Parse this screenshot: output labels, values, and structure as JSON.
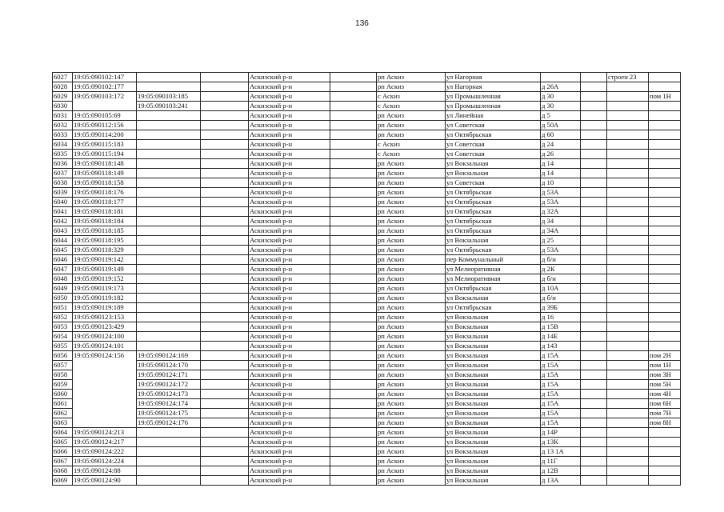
{
  "page_number": "136",
  "table": {
    "rows": [
      [
        "6027",
        "19:05:090102:147",
        "",
        "Аскизский р-н",
        "рп Аскиз",
        "ул Нагорная",
        "",
        "строен 23",
        ""
      ],
      [
        "6028",
        "19:05:090102:177",
        "",
        "Аскизский р-н",
        "рп Аскиз",
        "ул Нагорная",
        "д 26А",
        "",
        ""
      ],
      [
        "6029",
        "19:05:090103:172",
        "19:05:090103:185",
        "Аскизский р-н",
        "с Аскиз",
        "ул Промышленная",
        "д 30",
        "",
        "пом 1Н"
      ],
      [
        "6030",
        null,
        "19:05:090103:241",
        "Аскизский р-н",
        "с Аскиз",
        "ул Промышленная",
        "д 30",
        "",
        ""
      ],
      [
        "6031",
        "19:05:090105:69",
        "",
        "Аскизский р-н",
        "рп Аскиз",
        "ул Линейная",
        "д 5",
        "",
        ""
      ],
      [
        "6032",
        "19:05:090112:156",
        "",
        "Аскизский р-н",
        "рп Аскиз",
        "ул Советская",
        "д 50А",
        "",
        ""
      ],
      [
        "6033",
        "19:05:090114:200",
        "",
        "Аскизский р-н",
        "рп Аскиз",
        "ул Октябрьская",
        "д 60",
        "",
        ""
      ],
      [
        "6034",
        "19:05:090115:183",
        "",
        "Аскизский р-н",
        "с Аскиз",
        "ул Советская",
        "д 24",
        "",
        ""
      ],
      [
        "6035",
        "19:05:090115:194",
        "",
        "Аскизский р-н",
        "с Аскиз",
        "ул Советская",
        "д 26",
        "",
        ""
      ],
      [
        "6036",
        "19:05:090118:148",
        "",
        "Аскизский р-н",
        "рп Аскиз",
        "ул Вокзальная",
        "д 14",
        "",
        ""
      ],
      [
        "6037",
        "19:05:090118:149",
        "",
        "Аскизский р-н",
        "рп Аскиз",
        "ул Вокзальная",
        "д 14",
        "",
        ""
      ],
      [
        "6038",
        "19:05:090118:158",
        "",
        "Аскизский р-н",
        "рп Аскиз",
        "ул Советская",
        "д 10",
        "",
        ""
      ],
      [
        "6039",
        "19:05:090118:176",
        "",
        "Аскизский р-н",
        "рп Аскиз",
        "ул Октябрьская",
        "д 53А",
        "",
        ""
      ],
      [
        "6040",
        "19:05:090118:177",
        "",
        "Аскизский р-н",
        "рп Аскиз",
        "ул Октябрьская",
        "д 53А",
        "",
        ""
      ],
      [
        "6041",
        "19:05:090118:181",
        "",
        "Аскизский р-н",
        "рп Аскиз",
        "ул Октябрьская",
        "д 32А",
        "",
        ""
      ],
      [
        "6042",
        "19:05:090118:184",
        "",
        "Аскизский р-н",
        "рп Аскиз",
        "ул Октябрьская",
        "д 34",
        "",
        ""
      ],
      [
        "6043",
        "19:05:090118:185",
        "",
        "Аскизский р-н",
        "рп Аскиз",
        "ул Октябрьская",
        "д 34А",
        "",
        ""
      ],
      [
        "6044",
        "19:05:090118:195",
        "",
        "Аскизский р-н",
        "рп Аскиз",
        "ул Вокзальная",
        "д 25",
        "",
        ""
      ],
      [
        "6045",
        "19:05:090118:329",
        "",
        "Аскизский р-н",
        "рп Аскиз",
        "ул Октябрьская",
        "д 53А",
        "",
        ""
      ],
      [
        "6046",
        "19:05:090119:142",
        "",
        "Аскизский р-н",
        "рп Аскиз",
        "пер Коммунальный",
        "д б/н",
        "",
        ""
      ],
      [
        "6047",
        "19:05:090119:149",
        "",
        "Аскизский р-н",
        "рп Аскиз",
        "ул Мелиоративная",
        "д 2К",
        "",
        ""
      ],
      [
        "6048",
        "19:05:090119:152",
        "",
        "Аскизский р-н",
        "рп Аскиз",
        "ул Мелиоративная",
        "д б/н",
        "",
        ""
      ],
      [
        "6049",
        "19:05:090119:173",
        "",
        "Аскизский р-н",
        "рп Аскиз",
        "ул Октябрьская",
        "д 10А",
        "",
        ""
      ],
      [
        "6050",
        "19:05:090119:182",
        "",
        "Аскизский р-н",
        "рп Аскиз",
        "ул Вокзальная",
        "д б/н",
        "",
        ""
      ],
      [
        "6051",
        "19:05:090119:189",
        "",
        "Аскизский р-н",
        "рп Аскиз",
        "ул Октябрьская",
        "д 39Б",
        "",
        ""
      ],
      [
        "6052",
        "19:05:090123:153",
        "",
        "Аскизский р-н",
        "рп Аскиз",
        "ул Вокзальная",
        "д 16",
        "",
        ""
      ],
      [
        "6053",
        "19:05:090123:429",
        "",
        "Аскизский р-н",
        "рп Аскиз",
        "ул Вокзальная",
        "д 15В",
        "",
        ""
      ],
      [
        "6054",
        "19:05:090124:100",
        "",
        "Аскизский р-н",
        "рп Аскиз",
        "ул Вокзальная",
        "д 14Е",
        "",
        ""
      ],
      [
        "6055",
        "19:05:090124:101",
        "",
        "Аскизский р-н",
        "рп Аскиз",
        "ул Вокзальная",
        "д 143",
        "",
        ""
      ],
      [
        "6056",
        "19:05:090124:156",
        "19:05:090124:169",
        "Аскизский р-н",
        "рп Аскиз",
        "ул Вокзальная",
        "д 15А",
        "",
        "пом 2Н"
      ],
      [
        "6057",
        null,
        "19:05:090124:170",
        "Аскизский р-н",
        "рп Аскиз",
        "ул Вокзальная",
        "д 15А",
        "",
        "пом 1Н"
      ],
      [
        "6058",
        null,
        "19:05:090124:171",
        "Аскизский р-н",
        "рп Аскиз",
        "ул Вокзальная",
        "д 15А",
        "",
        "пом 3Н"
      ],
      [
        "6059",
        null,
        "19:05:090124:172",
        "Аскизский р-н",
        "рп Аскиз",
        "ул Вокзальная",
        "д 15А",
        "",
        "пом 5Н"
      ],
      [
        "6060",
        null,
        "19:05:090124:173",
        "Аскизский р-н",
        "рп Аскиз",
        "ул Вокзальная",
        "д 15А",
        "",
        "пом 4Н"
      ],
      [
        "6061",
        null,
        "19:05:090124:174",
        "Аскизский р-н",
        "рп Аскиз",
        "ул Вокзальная",
        "д 15А",
        "",
        "пом 6Н"
      ],
      [
        "6062",
        null,
        "19:05:090124:175",
        "Аскизский р-н",
        "рп Аскиз",
        "ул Вокзальная",
        "д 15А",
        "",
        "пом 7Н"
      ],
      [
        "6063",
        null,
        "19:05:090124:176",
        "Аскизский р-н",
        "рп Аскиз",
        "ул Вокзальная",
        "д 15А",
        "",
        "пом 8Н"
      ],
      [
        "6064",
        "19:05:090124:213",
        "",
        "Аскизский р-н",
        "рп Аскиз",
        "ул Вокзальная",
        "д 14Р",
        "",
        ""
      ],
      [
        "6065",
        "19:05:090124:217",
        "",
        "Аскизский р-н",
        "рп Аскиз",
        "ул Вокзальная",
        "д 13К",
        "",
        ""
      ],
      [
        "6066",
        "19:05:090124:222",
        "",
        "Аскизский р-н",
        "рп Аскиз",
        "ул Вокзальная",
        "д 13 1А",
        "",
        ""
      ],
      [
        "6067",
        "19:05:090124:224",
        "",
        "Аскизский р-н",
        "рп Аскиз",
        "ул Вокзальная",
        "д 11Г",
        "",
        ""
      ],
      [
        "6068",
        "19:05:090124:88",
        "",
        "Аскизский р-н",
        "рп Аскиз",
        "ул Вокзальная",
        "д 12В",
        "",
        ""
      ],
      [
        "6069",
        "19:05:090124:90",
        "",
        "Аскизский р-н",
        "рп Аскиз",
        "ул Вокзальная",
        "д 13А",
        "",
        ""
      ]
    ]
  }
}
